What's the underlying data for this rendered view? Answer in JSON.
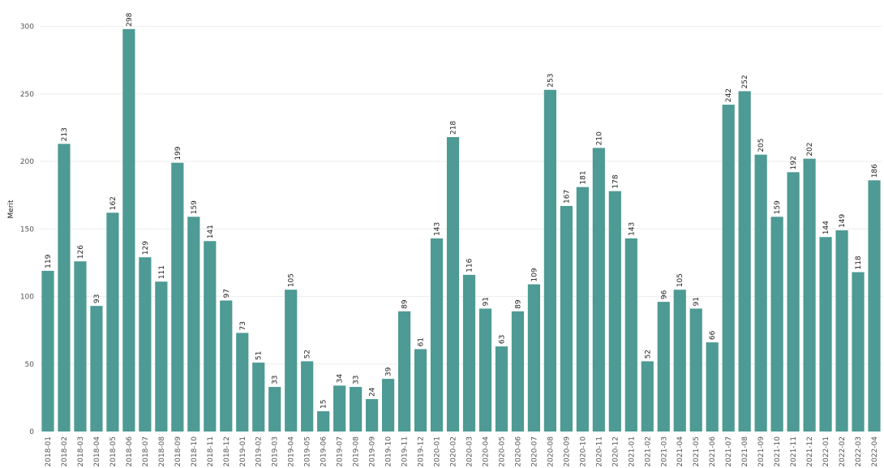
{
  "chart_data": {
    "type": "bar",
    "ylabel": "Merit",
    "xlabel": "",
    "ylim": [
      0,
      320
    ],
    "yticks": [
      0,
      50,
      100,
      150,
      200,
      250,
      300
    ],
    "grid": true,
    "bar_color": "#4e9a94",
    "categories": [
      "2018-01",
      "2018-02",
      "2018-03",
      "2018-04",
      "2018-05",
      "2018-06",
      "2018-07",
      "2018-08",
      "2018-09",
      "2018-10",
      "2018-11",
      "2018-12",
      "2019-01",
      "2019-02",
      "2019-03",
      "2019-04",
      "2019-05",
      "2019-06",
      "2019-07",
      "2019-08",
      "2019-09",
      "2019-10",
      "2019-11",
      "2019-12",
      "2020-01",
      "2020-02",
      "2020-03",
      "2020-04",
      "2020-05",
      "2020-06",
      "2020-07",
      "2020-08",
      "2020-09",
      "2020-10",
      "2020-11",
      "2020-12",
      "2021-01",
      "2021-02",
      "2021-03",
      "2021-04",
      "2021-05",
      "2021-06",
      "2021-07",
      "2021-08",
      "2021-09",
      "2021-10",
      "2021-11",
      "2021-12",
      "2022-01",
      "2022-02",
      "2022-03",
      "2022-04"
    ],
    "values": [
      119,
      213,
      126,
      93,
      162,
      298,
      129,
      111,
      199,
      159,
      141,
      97,
      73,
      51,
      33,
      105,
      52,
      15,
      34,
      33,
      24,
      39,
      89,
      61,
      143,
      218,
      116,
      91,
      63,
      89,
      109,
      253,
      167,
      181,
      210,
      178,
      143,
      52,
      96,
      105,
      91,
      66,
      242,
      252,
      205,
      159,
      192,
      202,
      144,
      149,
      118,
      186
    ]
  }
}
